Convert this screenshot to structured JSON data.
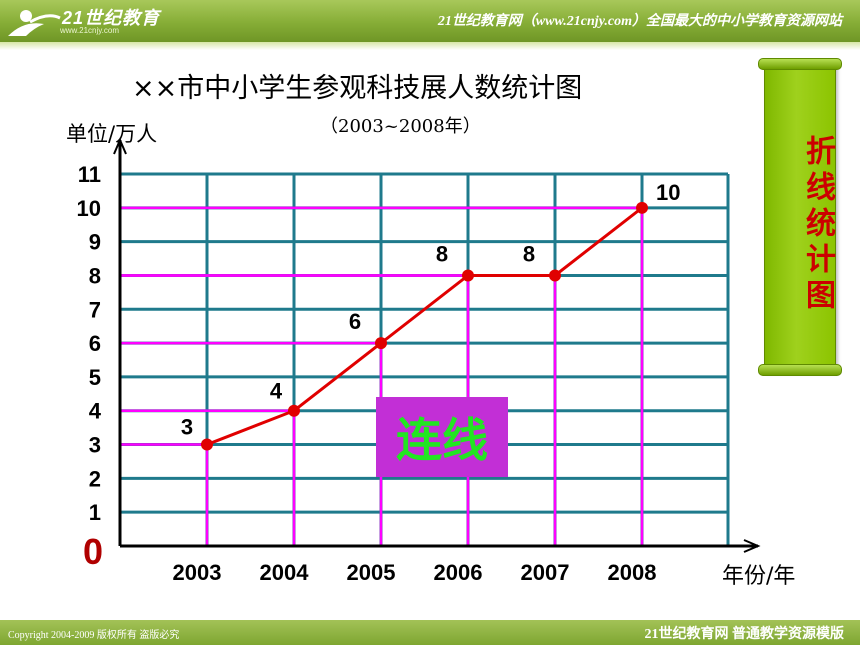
{
  "header": {
    "logo_text": "21世纪教育",
    "logo_url": "www.21cnjy.com",
    "slogan": "21世纪教育网（www.21cnjy.com）全国最大的中小学教育资源网站"
  },
  "footer": {
    "copyright": "Copyright 2004-2009 版权所有 盗版必究",
    "brand": "21世纪教育网    普通教学资源模版"
  },
  "side_scroll": {
    "text": "折线统计图"
  },
  "badge": {
    "text": "连线"
  },
  "chart_data": {
    "type": "line",
    "title": "××市中小学生参观科技展人数统计图",
    "subtitle": "（2003~2008年）",
    "ylabel": "单位/万人",
    "xlabel": "年份/年",
    "origin_label": "0",
    "categories": [
      "2003",
      "2004",
      "2005",
      "2006",
      "2007",
      "2008"
    ],
    "values": [
      3,
      4,
      6,
      8,
      8,
      10
    ],
    "data_labels": [
      "3",
      "4",
      "6",
      "8",
      "8",
      "10"
    ],
    "ylim": [
      0,
      11
    ],
    "yticks": [
      "1",
      "2",
      "3",
      "4",
      "5",
      "6",
      "7",
      "8",
      "9",
      "10",
      "11"
    ],
    "grid": true,
    "colors": {
      "grid": "#1f7a8c",
      "line": "#e00000",
      "marker": "#e00000",
      "guide": "#ff00ff",
      "origin": "#b00000"
    }
  }
}
